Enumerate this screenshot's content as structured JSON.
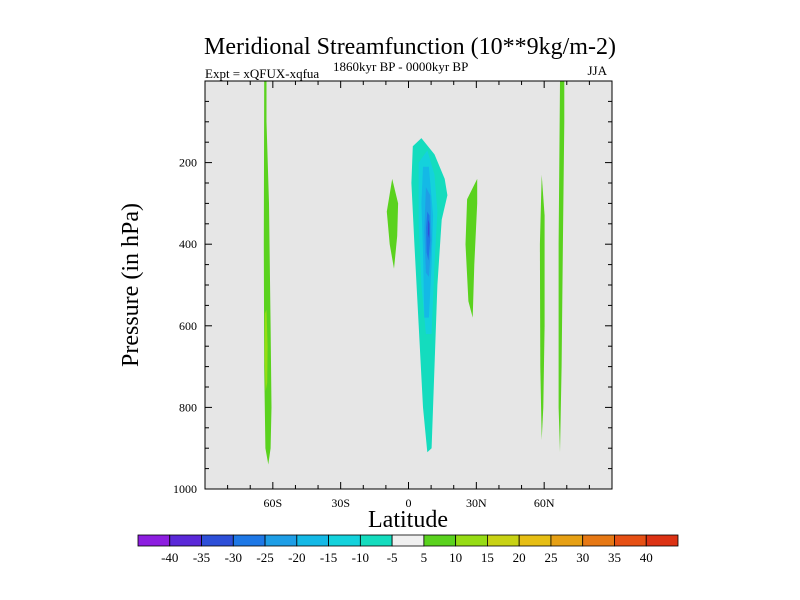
{
  "chart_data": {
    "type": "filled-contour",
    "title": "Meridional Streamfunction (10**9kg/m-2)",
    "subtitle_left": "Expt = xQFUX-xqfua",
    "subtitle_center": "1860kyr BP - 0000kyr BP",
    "subtitle_right": "JJA",
    "xlabel": "Latitude",
    "ylabel": "Pressure (in hPa)",
    "xlim": [
      -90,
      90
    ],
    "ylim": [
      1000,
      0
    ],
    "x_ticks": [
      {
        "value": -60,
        "label": "60S"
      },
      {
        "value": -30,
        "label": "30S"
      },
      {
        "value": 0,
        "label": "0"
      },
      {
        "value": 30,
        "label": "30N"
      },
      {
        "value": 60,
        "label": "60N"
      }
    ],
    "y_ticks": [
      {
        "value": 200,
        "label": "200"
      },
      {
        "value": 400,
        "label": "400"
      },
      {
        "value": 600,
        "label": "600"
      },
      {
        "value": 800,
        "label": "800"
      },
      {
        "value": 1000,
        "label": "1000"
      }
    ],
    "background_color": "#e6e6e6",
    "colorbar": {
      "labels": [
        "-40",
        "-35",
        "-30",
        "-25",
        "-20",
        "-15",
        "-10",
        "-5",
        "5",
        "10",
        "15",
        "20",
        "25",
        "30",
        "35",
        "40"
      ],
      "colors": [
        "#8d1ee0",
        "#5a28d8",
        "#2d4fd8",
        "#1e78e6",
        "#1e9ee6",
        "#14b9e6",
        "#14d2dc",
        "#14dcbe",
        "#f0f0f0",
        "#5ad21e",
        "#96dc14",
        "#c8d214",
        "#e6be14",
        "#e6a014",
        "#e67814",
        "#e65014",
        "#dc3214"
      ]
    },
    "regions": [
      {
        "name": "60S band",
        "value": 5,
        "color": "#5ad21e",
        "points": [
          [
            -63.8,
            0
          ],
          [
            -62.8,
            0
          ],
          [
            -62.8,
            100
          ],
          [
            -61.7,
            300
          ],
          [
            -61.0,
            600
          ],
          [
            -60.6,
            800
          ],
          [
            -61.0,
            900
          ],
          [
            -62.0,
            940
          ],
          [
            -63.3,
            900
          ],
          [
            -63.8,
            700
          ],
          [
            -64.0,
            400
          ]
        ]
      },
      {
        "name": "60S core",
        "value": 10,
        "color": "#96dc14",
        "points": [
          [
            -63.5,
            570
          ],
          [
            -62.8,
            560
          ],
          [
            -62.3,
            650
          ],
          [
            -62.5,
            740
          ],
          [
            -63.2,
            760
          ],
          [
            -63.6,
            680
          ]
        ]
      },
      {
        "name": "5S cell",
        "value": 5,
        "color": "#5ad21e",
        "points": [
          [
            -9.6,
            320
          ],
          [
            -7.2,
            240
          ],
          [
            -4.6,
            300
          ],
          [
            -5.0,
            380
          ],
          [
            -6.4,
            460
          ],
          [
            -8.3,
            400
          ]
        ]
      },
      {
        "name": "Equatorial cell",
        "value": -5,
        "color": "#14dcbe",
        "points": [
          [
            1.9,
            160
          ],
          [
            5.7,
            140
          ],
          [
            11.5,
            180
          ],
          [
            16.0,
            240
          ],
          [
            17.2,
            280
          ],
          [
            14.7,
            340
          ],
          [
            12.8,
            500
          ],
          [
            11.5,
            700
          ],
          [
            10.2,
            900
          ],
          [
            8.3,
            910
          ],
          [
            6.4,
            800
          ],
          [
            4.5,
            600
          ],
          [
            2.6,
            400
          ],
          [
            1.3,
            250
          ]
        ]
      },
      {
        "name": "Equatorial -10",
        "value": -10,
        "color": "#14d2dc",
        "points": [
          [
            4.5,
            200
          ],
          [
            8.3,
            170
          ],
          [
            11.5,
            230
          ],
          [
            12.8,
            320
          ],
          [
            11.5,
            450
          ],
          [
            10.2,
            620
          ],
          [
            7.7,
            620
          ],
          [
            5.7,
            500
          ],
          [
            4.5,
            350
          ]
        ]
      },
      {
        "name": "Equatorial -15",
        "value": -15,
        "color": "#14b9e6",
        "points": [
          [
            6.4,
            210
          ],
          [
            9.0,
            210
          ],
          [
            10.9,
            330
          ],
          [
            10.2,
            450
          ],
          [
            9.0,
            580
          ],
          [
            7.0,
            580
          ],
          [
            6.4,
            420
          ],
          [
            5.7,
            300
          ]
        ]
      },
      {
        "name": "Equatorial -20",
        "value": -20,
        "color": "#1e9ee6",
        "points": [
          [
            7.7,
            260
          ],
          [
            9.6,
            280
          ],
          [
            10.2,
            390
          ],
          [
            9.0,
            480
          ],
          [
            7.7,
            470
          ],
          [
            7.0,
            370
          ]
        ]
      },
      {
        "name": "Equatorial -25",
        "value": -25,
        "color": "#1e78e6",
        "points": [
          [
            8.3,
            320
          ],
          [
            9.3,
            330
          ],
          [
            9.6,
            390
          ],
          [
            8.8,
            440
          ],
          [
            8.0,
            420
          ],
          [
            7.8,
            360
          ]
        ]
      },
      {
        "name": "Equatorial -30",
        "value": -30,
        "color": "#2d4fd8",
        "points": [
          [
            8.7,
            340
          ],
          [
            9.3,
            350
          ],
          [
            9.1,
            385
          ],
          [
            8.6,
            375
          ]
        ]
      },
      {
        "name": "25N cell",
        "value": 5,
        "color": "#5ad21e",
        "points": [
          [
            25.9,
            290
          ],
          [
            30.4,
            240
          ],
          [
            30.4,
            300
          ],
          [
            29.1,
            450
          ],
          [
            28.4,
            580
          ],
          [
            26.5,
            540
          ],
          [
            25.2,
            400
          ]
        ]
      },
      {
        "name": "60N strand",
        "value": 5,
        "color": "#5ad21e",
        "points": [
          [
            58.9,
            230
          ],
          [
            60.2,
            330
          ],
          [
            60.2,
            600
          ],
          [
            59.6,
            800
          ],
          [
            58.9,
            880
          ],
          [
            58.3,
            700
          ],
          [
            58.1,
            400
          ]
        ]
      },
      {
        "name": "70N band",
        "value": 5,
        "color": "#5ad21e",
        "points": [
          [
            67.0,
            0
          ],
          [
            68.9,
            0
          ],
          [
            68.9,
            100
          ],
          [
            68.3,
            400
          ],
          [
            67.7,
            700
          ],
          [
            67.0,
            910
          ],
          [
            66.4,
            800
          ],
          [
            66.4,
            400
          ]
        ]
      }
    ]
  }
}
